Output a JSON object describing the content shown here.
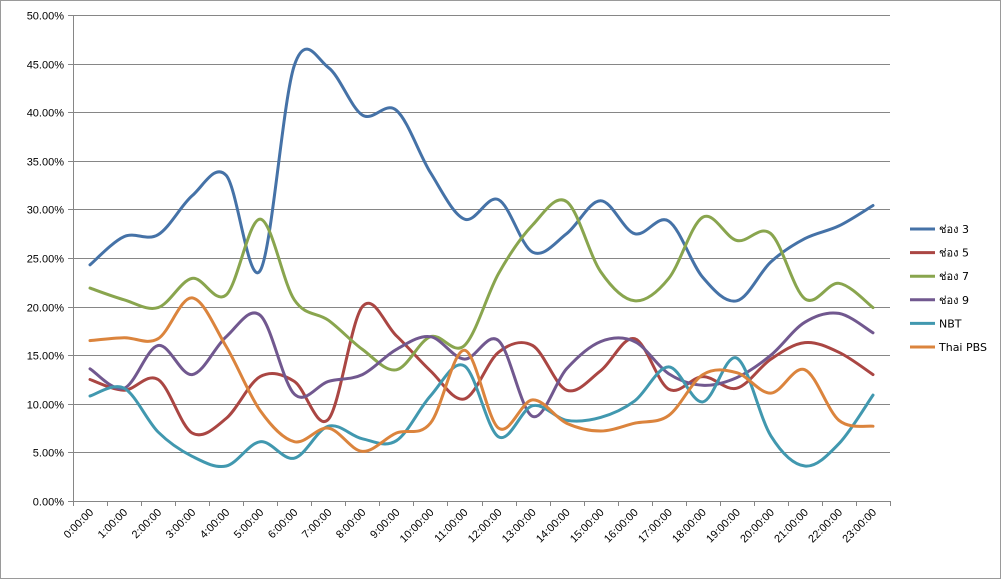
{
  "chart_data": {
    "type": "line",
    "smooth": true,
    "title": "",
    "xlabel": "",
    "ylabel": "",
    "ylim": [
      0,
      50
    ],
    "y_tick_step": 5,
    "y_tick_labels": [
      "0.00%",
      "5.00%",
      "10.00%",
      "15.00%",
      "20.00%",
      "25.00%",
      "30.00%",
      "35.00%",
      "40.00%",
      "45.00%",
      "50.00%"
    ],
    "categories": [
      "0:00:00",
      "1:00:00",
      "2:00:00",
      "3:00:00",
      "4:00:00",
      "5:00:00",
      "6:00:00",
      "7:00:00",
      "8:00:00",
      "9:00:00",
      "10:00:00",
      "11:00:00",
      "12:00:00",
      "13:00:00",
      "14:00:00",
      "15:00:00",
      "16:00:00",
      "17:00:00",
      "18:00:00",
      "19:00:00",
      "20:00:00",
      "21:00:00",
      "22:00:00",
      "23:00:00"
    ],
    "grid": "horizontal",
    "legend_position": "right",
    "series": [
      {
        "name": "ช่อง 3",
        "color": "#4572A7",
        "values": [
          24.3,
          27.2,
          27.4,
          31.4,
          33.5,
          23.7,
          44.8,
          44.6,
          39.7,
          40.2,
          33.8,
          29.0,
          31.0,
          25.6,
          27.5,
          30.9,
          27.5,
          28.8,
          23.0,
          20.6,
          24.6,
          27.0,
          28.3,
          30.4
        ]
      },
      {
        "name": "ช่อง 5",
        "color": "#AA4643",
        "values": [
          12.5,
          11.4,
          12.5,
          7.0,
          8.5,
          12.8,
          12.3,
          8.4,
          20.0,
          17.0,
          13.4,
          10.5,
          15.3,
          16.0,
          11.4,
          13.4,
          16.7,
          11.5,
          12.8,
          11.6,
          14.6,
          16.3,
          15.3,
          13.0
        ]
      },
      {
        "name": "ช่อง 7",
        "color": "#89A54E",
        "values": [
          21.9,
          20.7,
          19.9,
          22.9,
          21.2,
          29.0,
          20.7,
          18.6,
          15.6,
          13.5,
          16.9,
          16.0,
          23.4,
          28.4,
          30.8,
          23.6,
          20.6,
          22.9,
          29.2,
          26.8,
          27.5,
          20.8,
          22.4,
          19.9
        ]
      },
      {
        "name": "ช่อง 9",
        "color": "#71588F",
        "values": [
          13.6,
          11.6,
          16.0,
          13.0,
          16.9,
          19.1,
          11.0,
          12.3,
          13.0,
          15.6,
          16.9,
          14.6,
          16.5,
          8.7,
          13.6,
          16.4,
          16.4,
          13.1,
          11.9,
          12.7,
          15.0,
          18.4,
          19.3,
          17.3
        ]
      },
      {
        "name": "NBT",
        "color": "#4198AF",
        "values": [
          10.8,
          11.6,
          7.1,
          4.6,
          3.6,
          6.1,
          4.4,
          7.7,
          6.4,
          6.2,
          10.8,
          13.9,
          6.6,
          9.8,
          8.3,
          8.6,
          10.3,
          13.8,
          10.2,
          14.7,
          6.7,
          3.6,
          5.9,
          10.9
        ]
      },
      {
        "name": "Thai PBS",
        "color": "#DB843D",
        "values": [
          16.5,
          16.8,
          16.7,
          20.9,
          15.9,
          9.3,
          6.1,
          7.5,
          5.1,
          7.0,
          8.0,
          15.5,
          7.5,
          10.4,
          8.0,
          7.2,
          8.0,
          8.8,
          13.0,
          13.2,
          11.1,
          13.5,
          8.3,
          7.7
        ]
      }
    ]
  }
}
